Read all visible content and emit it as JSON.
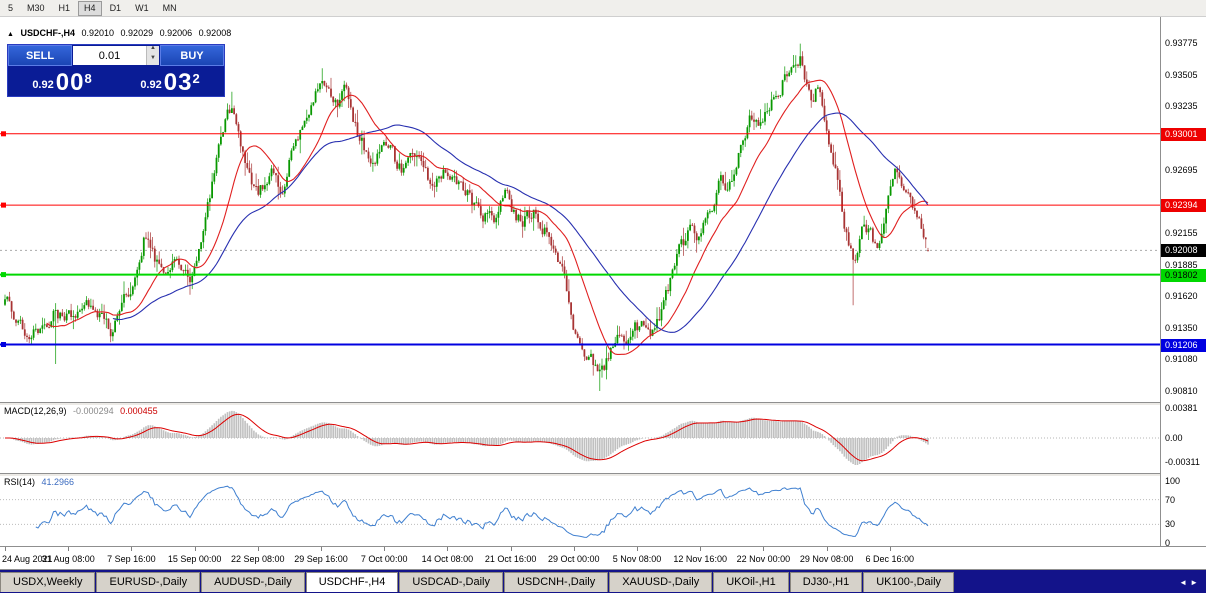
{
  "toolbar": {
    "timeframes": [
      {
        "label": "5"
      },
      {
        "label": "M30"
      },
      {
        "label": "H1"
      },
      {
        "label": "H4"
      },
      {
        "label": "D1"
      },
      {
        "label": "W1"
      },
      {
        "label": "MN"
      }
    ],
    "active": "H4"
  },
  "chart": {
    "collapse_icon": "▲",
    "title": "USDCHF-,H4",
    "ohlc": {
      "open": "0.92010",
      "high": "0.92029",
      "low": "0.92006",
      "close": "0.92008"
    },
    "trade_panel": {
      "sell_label": "SELL",
      "buy_label": "BUY",
      "volume": "0.01",
      "spinner_up": "▲",
      "spinner_down": "▼",
      "sell_price": {
        "figure": "0.92",
        "pips": "00",
        "pipette": "8"
      },
      "buy_price": {
        "figure": "0.92",
        "pips": "03",
        "pipette": "2"
      }
    },
    "price_axis": {
      "ticks": [
        {
          "text": "0.93775",
          "price": 0.93775
        },
        {
          "text": "0.93505",
          "price": 0.93505
        },
        {
          "text": "0.93235",
          "price": 0.93235
        },
        {
          "text": "0.92695",
          "price": 0.92695
        },
        {
          "text": "0.92155",
          "price": 0.92155
        },
        {
          "text": "0.91885",
          "price": 0.91885
        },
        {
          "text": "0.91620",
          "price": 0.9162
        },
        {
          "text": "0.91350",
          "price": 0.9135
        },
        {
          "text": "0.91080",
          "price": 0.9108
        },
        {
          "text": "0.90810",
          "price": 0.9081
        }
      ],
      "markers": [
        {
          "text": "0.93001",
          "price": 0.93001,
          "bg": "#ee0000",
          "fg": "#ffffff"
        },
        {
          "text": "0.92394",
          "price": 0.92394,
          "bg": "#ee0000",
          "fg": "#ffffff"
        },
        {
          "text": "0.92008",
          "price": 0.92008,
          "bg": "#000000",
          "fg": "#ffffff"
        },
        {
          "text": "0.91802",
          "price": 0.91802,
          "bg": "#00d800",
          "fg": "#000000"
        },
        {
          "text": "0.91206",
          "price": 0.91206,
          "bg": "#0000e0",
          "fg": "#ffffff"
        }
      ]
    },
    "levels": [
      {
        "price": 0.93001,
        "color": "#ff0000",
        "width": 1
      },
      {
        "price": 0.92394,
        "color": "#ff0000",
        "width": 1
      },
      {
        "price": 0.91802,
        "color": "#00d800",
        "width": 2
      },
      {
        "price": 0.91206,
        "color": "#0000e0",
        "width": 2
      }
    ],
    "bid_line": {
      "price": 0.92008,
      "color": "#aaaaaa"
    },
    "time_axis": {
      "labels": [
        "24 Aug 2021",
        "31 Aug 08:00",
        "7 Sep 16:00",
        "15 Sep 00:00",
        "22 Sep 08:00",
        "29 Sep 16:00",
        "7 Oct 00:00",
        "14 Oct 08:00",
        "21 Oct 16:00",
        "29 Oct 00:00",
        "5 Nov 08:00",
        "12 Nov 16:00",
        "22 Nov 00:00",
        "29 Nov 08:00",
        "6 Dec 16:00"
      ]
    }
  },
  "macd": {
    "name": "MACD(12,26,9)",
    "main_value": "-0.000294",
    "signal_value": "0.000455",
    "scale": [
      {
        "text": "0.00381",
        "value": 0.00381
      },
      {
        "text": "0.00",
        "value": 0
      },
      {
        "text": "-0.00311",
        "value": -0.00311
      }
    ],
    "hist_color": "#c0c0c0",
    "signal_color": "#dd0000"
  },
  "rsi": {
    "name": "RSI(14)",
    "value": "41.2966",
    "scale": [
      {
        "text": "100",
        "value": 100
      },
      {
        "text": "70",
        "value": 70
      },
      {
        "text": "30",
        "value": 30
      },
      {
        "text": "0",
        "value": 0
      }
    ],
    "guides": [
      70,
      30
    ],
    "line_color": "#4080d0"
  },
  "tabs": {
    "items": [
      "USDX,Weekly",
      "EURUSD-,Daily",
      "AUDUSD-,Daily",
      "USDCHF-,H4",
      "USDCAD-,Daily",
      "USDCNH-,Daily",
      "XAUUSD-,Daily",
      "UKOil-,H1",
      "DJ30-,H1",
      "UK100-,Daily"
    ],
    "active": "USDCHF-,H4",
    "scroll_left_icon": "◄",
    "scroll_right_icon": "►"
  },
  "chart_data": {
    "type": "candlestick",
    "symbol": "USDCHF",
    "timeframe": "H4",
    "title": "USDCHF-,H4",
    "y_range": [
      0.9073,
      0.94
    ],
    "x_range_labels": [
      "24 Aug 2021",
      "6 Dec 16:00"
    ],
    "candles": 420,
    "seed": 77,
    "last_bar": {
      "open": 0.9201,
      "high": 0.92029,
      "low": 0.92006,
      "close": 0.92008
    },
    "price_path": [
      [
        0.0,
        0.916
      ],
      [
        0.027,
        0.9128
      ],
      [
        0.054,
        0.915
      ],
      [
        0.076,
        0.914
      ],
      [
        0.097,
        0.9157
      ],
      [
        0.114,
        0.9132
      ],
      [
        0.135,
        0.9166
      ],
      [
        0.152,
        0.9214
      ],
      [
        0.168,
        0.9182
      ],
      [
        0.184,
        0.9196
      ],
      [
        0.2,
        0.9177
      ],
      [
        0.217,
        0.9222
      ],
      [
        0.233,
        0.929
      ],
      [
        0.246,
        0.9326
      ],
      [
        0.26,
        0.928
      ],
      [
        0.274,
        0.9247
      ],
      [
        0.287,
        0.927
      ],
      [
        0.301,
        0.9252
      ],
      [
        0.314,
        0.9292
      ],
      [
        0.33,
        0.9312
      ],
      [
        0.343,
        0.9348
      ],
      [
        0.357,
        0.932
      ],
      [
        0.368,
        0.9338
      ],
      [
        0.385,
        0.9292
      ],
      [
        0.401,
        0.928
      ],
      [
        0.412,
        0.9296
      ],
      [
        0.428,
        0.927
      ],
      [
        0.444,
        0.9281
      ],
      [
        0.46,
        0.9256
      ],
      [
        0.471,
        0.927
      ],
      [
        0.488,
        0.9264
      ],
      [
        0.504,
        0.9246
      ],
      [
        0.515,
        0.923
      ],
      [
        0.531,
        0.923
      ],
      [
        0.542,
        0.9246
      ],
      [
        0.558,
        0.9226
      ],
      [
        0.574,
        0.9231
      ],
      [
        0.59,
        0.9214
      ],
      [
        0.607,
        0.918
      ],
      [
        0.617,
        0.913
      ],
      [
        0.634,
        0.911
      ],
      [
        0.645,
        0.9097
      ],
      [
        0.661,
        0.9121
      ],
      [
        0.677,
        0.9131
      ],
      [
        0.688,
        0.9136
      ],
      [
        0.704,
        0.9131
      ],
      [
        0.715,
        0.9161
      ],
      [
        0.731,
        0.9201
      ],
      [
        0.744,
        0.9221
      ],
      [
        0.753,
        0.9211
      ],
      [
        0.764,
        0.9231
      ],
      [
        0.775,
        0.9266
      ],
      [
        0.785,
        0.9256
      ],
      [
        0.796,
        0.9291
      ],
      [
        0.807,
        0.9311
      ],
      [
        0.818,
        0.9301
      ],
      [
        0.829,
        0.9321
      ],
      [
        0.84,
        0.9341
      ],
      [
        0.85,
        0.9358
      ],
      [
        0.861,
        0.9366
      ],
      [
        0.872,
        0.9331
      ],
      [
        0.883,
        0.9341
      ],
      [
        0.894,
        0.9291
      ],
      [
        0.905,
        0.9246
      ],
      [
        0.913,
        0.9211
      ],
      [
        0.921,
        0.9191
      ],
      [
        0.929,
        0.9221
      ],
      [
        0.937,
        0.9216
      ],
      [
        0.945,
        0.9196
      ],
      [
        0.953,
        0.9221
      ],
      [
        0.964,
        0.9271
      ],
      [
        0.975,
        0.9256
      ],
      [
        0.986,
        0.9231
      ],
      [
        1.0,
        0.9201
      ]
    ],
    "spikes": [
      {
        "t": 0.055,
        "side": "low",
        "price": 0.9104
      },
      {
        "t": 0.246,
        "side": "high",
        "price": 0.9336
      },
      {
        "t": 0.343,
        "side": "high",
        "price": 0.9356
      },
      {
        "t": 0.645,
        "side": "low",
        "price": 0.9081
      },
      {
        "t": 0.861,
        "side": "high",
        "price": 0.9377
      },
      {
        "t": 0.92,
        "side": "low",
        "price": 0.9154
      }
    ],
    "overlays": [
      {
        "type": "sma",
        "period": 20,
        "color": "#e02020"
      },
      {
        "type": "sma",
        "period": 50,
        "color": "#2830b0"
      }
    ],
    "up_color": "#089800",
    "down_color": "#a83434"
  }
}
